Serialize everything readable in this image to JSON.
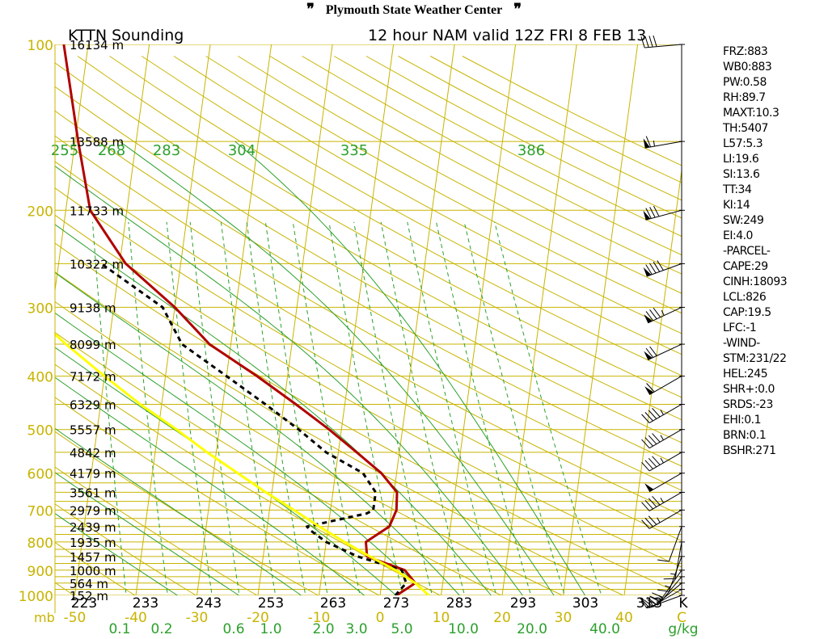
{
  "header": {
    "title": "Plymouth State Weather Center",
    "logo_icon": "pennant-icon"
  },
  "chart_data": {
    "type": "line",
    "chart_kind": "skew-t log-p sounding",
    "station_title": "KTTN Sounding",
    "valid_title": "12 hour NAM valid 12Z FRI 8 FEB 13",
    "pressure_unit": "mb",
    "temperature_unit": "C",
    "mixing_ratio_unit": "g/kg",
    "theta_unit": "K",
    "pressure_ticks": [
      100,
      200,
      300,
      400,
      500,
      600,
      700,
      800,
      900,
      1000
    ],
    "height_labels": [
      {
        "p": 100,
        "label": "16134 m"
      },
      {
        "p": 150,
        "label": "13588 m"
      },
      {
        "p": 200,
        "label": "11733 m"
      },
      {
        "p": 250,
        "label": "10322 m"
      },
      {
        "p": 300,
        "label": "9138 m"
      },
      {
        "p": 350,
        "label": "8099 m"
      },
      {
        "p": 400,
        "label": "7172 m"
      },
      {
        "p": 450,
        "label": "6329 m"
      },
      {
        "p": 500,
        "label": "5557 m"
      },
      {
        "p": 550,
        "label": "4842 m"
      },
      {
        "p": 600,
        "label": "4179 m"
      },
      {
        "p": 650,
        "label": "3561 m"
      },
      {
        "p": 700,
        "label": "2979 m"
      },
      {
        "p": 750,
        "label": "2439 m"
      },
      {
        "p": 800,
        "label": "1935 m"
      },
      {
        "p": 850,
        "label": "1457 m"
      },
      {
        "p": 900,
        "label": "1000 m"
      },
      {
        "p": 950,
        "label": "564 m"
      },
      {
        "p": 1000,
        "label": "152 m"
      }
    ],
    "temperature_ticks": [
      -50,
      -40,
      -30,
      -20,
      -10,
      0,
      10,
      20,
      30,
      40
    ],
    "mixing_ratio_ticks": [
      "0.1",
      "0.2",
      "0.6",
      "1.0",
      "2.0",
      "3.0",
      "5.0",
      "10.0",
      "20.0",
      "40.0"
    ],
    "theta_bottom_ticks": [
      "223",
      "233",
      "243",
      "253",
      "263",
      "273",
      "283",
      "293",
      "303",
      "313"
    ],
    "theta_e_labels": [
      "255",
      "268",
      "283",
      "304",
      "335",
      "386"
    ],
    "xlim": [
      -50,
      50
    ],
    "ylim": [
      1050,
      100
    ],
    "series": [
      {
        "key": "temperature",
        "color": "#b00000",
        "points": [
          [
            1000,
            2.7
          ],
          [
            950,
            5.5
          ],
          [
            900,
            3.5
          ],
          [
            850,
            -3.0
          ],
          [
            800,
            -3.5
          ],
          [
            750,
            0.0
          ],
          [
            700,
            0.8
          ],
          [
            650,
            0.5
          ],
          [
            600,
            -2.5
          ],
          [
            550,
            -7.0
          ],
          [
            500,
            -12.0
          ],
          [
            450,
            -18.0
          ],
          [
            400,
            -25.0
          ],
          [
            350,
            -33.5
          ],
          [
            300,
            -40.0
          ],
          [
            250,
            -49.0
          ],
          [
            200,
            -56.0
          ],
          [
            150,
            -59.5
          ],
          [
            100,
            -64.0
          ]
        ]
      },
      {
        "key": "dewpoint",
        "color": "#000000",
        "dashed": true,
        "points": [
          [
            1000,
            2.5
          ],
          [
            950,
            4.0
          ],
          [
            900,
            3.0
          ],
          [
            850,
            -4.5
          ],
          [
            800,
            -10.0
          ],
          [
            760,
            -13.0
          ],
          [
            750,
            -13.5
          ],
          [
            710,
            -4.0
          ],
          [
            700,
            -3.0
          ],
          [
            650,
            -3.0
          ],
          [
            600,
            -5.5
          ],
          [
            550,
            -12.0
          ],
          [
            500,
            -17.0
          ],
          [
            450,
            -23.0
          ],
          [
            400,
            -30.0
          ],
          [
            350,
            -38.0
          ],
          [
            300,
            -42.0
          ],
          [
            250,
            -53.0
          ]
        ]
      },
      {
        "key": "parcel",
        "color": "#ffff00",
        "points": [
          [
            1000,
            8.0
          ],
          [
            950,
            5.5
          ],
          [
            900,
            2.0
          ],
          [
            850,
            -2.5
          ],
          [
            800,
            -7.0
          ],
          [
            750,
            -11.5
          ],
          [
            700,
            -16.0
          ],
          [
            650,
            -21.0
          ],
          [
            600,
            -26.0
          ],
          [
            550,
            -31.5
          ],
          [
            500,
            -37.0
          ],
          [
            450,
            -43.5
          ],
          [
            400,
            -50.0
          ],
          [
            350,
            -57.0
          ],
          [
            300,
            -64.5
          ],
          [
            250,
            -72.0
          ],
          [
            200,
            -80.0
          ],
          [
            150,
            -88.0
          ],
          [
            120,
            -90.0
          ]
        ]
      }
    ],
    "winds": [
      {
        "p": 1000,
        "dir": 250,
        "spd": 10
      },
      {
        "p": 975,
        "dir": 240,
        "spd": 15
      },
      {
        "p": 950,
        "dir": 230,
        "spd": 20
      },
      {
        "p": 925,
        "dir": 220,
        "spd": 25
      },
      {
        "p": 900,
        "dir": 215,
        "spd": 20
      },
      {
        "p": 850,
        "dir": 200,
        "spd": 15
      },
      {
        "p": 800,
        "dir": 190,
        "spd": 15
      },
      {
        "p": 750,
        "dir": 200,
        "spd": 10
      },
      {
        "p": 700,
        "dir": 240,
        "spd": 35
      },
      {
        "p": 650,
        "dir": 240,
        "spd": 45
      },
      {
        "p": 600,
        "dir": 240,
        "spd": 50
      },
      {
        "p": 550,
        "dir": 240,
        "spd": 45
      },
      {
        "p": 500,
        "dir": 240,
        "spd": 45
      },
      {
        "p": 450,
        "dir": 240,
        "spd": 45
      },
      {
        "p": 400,
        "dir": 240,
        "spd": 60
      },
      {
        "p": 350,
        "dir": 245,
        "spd": 70
      },
      {
        "p": 300,
        "dir": 245,
        "spd": 85
      },
      {
        "p": 250,
        "dir": 250,
        "spd": 90
      },
      {
        "p": 200,
        "dir": 255,
        "spd": 80
      },
      {
        "p": 150,
        "dir": 260,
        "spd": 65
      },
      {
        "p": 100,
        "dir": 265,
        "spd": 40
      }
    ],
    "colors": {
      "isotherm_isobar": "#c8b400",
      "dry_adiabat": "#c8b400",
      "moist_adiabat": "#2ca02c",
      "mixing_ratio": "#2ca02c",
      "temperature": "#b00000",
      "dewpoint": "#000000",
      "parcel": "#ffff00"
    }
  },
  "indices": [
    "FRZ:883",
    "WB0:883",
    "PW:0.58",
    "RH:89.7",
    "MAXT:10.3",
    "TH:5407",
    "L57:5.3",
    "LI:19.6",
    "SI:13.6",
    "TT:34",
    "KI:14",
    "SW:249",
    "EI:4.0",
    "-PARCEL-",
    "CAPE:29",
    "CINH:18093",
    "LCL:826",
    "CAP:19.5",
    "LFC:-1",
    "-WIND-",
    "STM:231/22",
    "HEL:245",
    "SHR+:0.0",
    "SRDS:-23",
    "EHI:0.1",
    "BRN:0.1",
    "BSHR:271"
  ]
}
